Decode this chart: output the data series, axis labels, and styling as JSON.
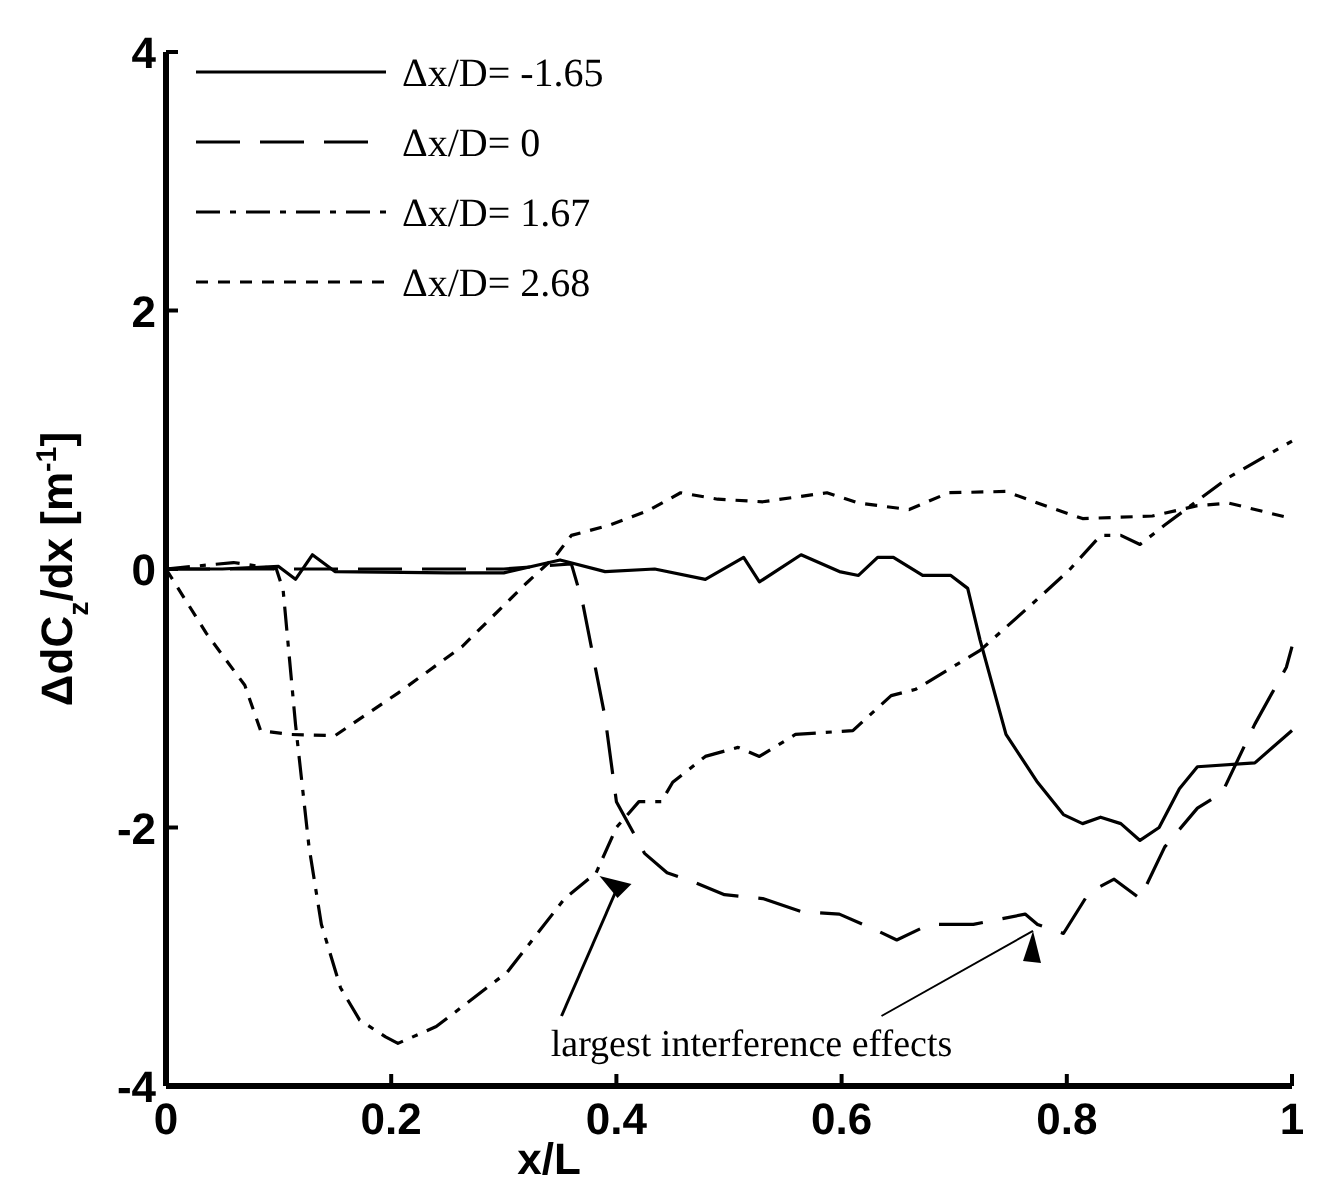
{
  "chart_data": {
    "type": "line",
    "xlabel": "x/L",
    "ylabel": "ΔdC$_{z}$/dx [m$^{-1}$]",
    "xlim": [
      0,
      1
    ],
    "ylim": [
      -4,
      4
    ],
    "xticks": [
      0,
      0.2,
      0.4,
      0.6,
      0.8,
      1
    ],
    "yticks": [
      -4,
      -2,
      0,
      2,
      4
    ],
    "grid": false,
    "legend": "top left",
    "annotations": [
      {
        "text": "largest interference effects",
        "x": 0.77,
        "y": -2.8
      }
    ],
    "series": [
      {
        "name": "Δx/D= -1.65",
        "color": "#000000",
        "line_style": "solid",
        "x": [
          0,
          0.05,
          0.1,
          0.115,
          0.13,
          0.15,
          0.25,
          0.3,
          0.35,
          0.39,
          0.434,
          0.479,
          0.513,
          0.527,
          0.564,
          0.598,
          0.615,
          0.632,
          0.646,
          0.672,
          0.697,
          0.712,
          0.723,
          0.746,
          0.774,
          0.797,
          0.814,
          0.83,
          0.848,
          0.865,
          0.882,
          0.9,
          0.916,
          0.967,
          1.0
        ],
        "values": [
          0,
          0,
          0.02,
          -0.08,
          0.11,
          -0.02,
          -0.03,
          -0.03,
          0.07,
          -0.02,
          0,
          -0.08,
          0.09,
          -0.1,
          0.11,
          -0.02,
          -0.05,
          0.09,
          0.09,
          -0.05,
          -0.05,
          -0.15,
          -0.55,
          -1.28,
          -1.65,
          -1.9,
          -1.97,
          -1.92,
          -1.97,
          -2.1,
          -2.0,
          -1.7,
          -1.53,
          -1.5,
          -1.25
        ]
      },
      {
        "name": "Δx/D= 0",
        "color": "#000000",
        "line_style": "dashed",
        "x": [
          0,
          0.1,
          0.2,
          0.3,
          0.36,
          0.37,
          0.39,
          0.4,
          0.425,
          0.445,
          0.468,
          0.496,
          0.53,
          0.564,
          0.598,
          0.632,
          0.649,
          0.678,
          0.717,
          0.763,
          0.774,
          0.797,
          0.82,
          0.842,
          0.865,
          0.887,
          0.916,
          0.938,
          0.967,
          0.995,
          1.0
        ],
        "values": [
          0,
          0,
          0,
          0,
          0.04,
          -0.26,
          -1.15,
          -1.8,
          -2.2,
          -2.35,
          -2.42,
          -2.52,
          -2.55,
          -2.65,
          -2.67,
          -2.8,
          -2.87,
          -2.75,
          -2.75,
          -2.67,
          -2.75,
          -2.82,
          -2.5,
          -2.4,
          -2.55,
          -2.15,
          -1.85,
          -1.73,
          -1.2,
          -0.76,
          -0.6
        ]
      },
      {
        "name": "Δx/D= 1.67",
        "color": "#000000",
        "line_style": "dashdot",
        "x": [
          0,
          0.06,
          0.098,
          0.104,
          0.115,
          0.127,
          0.138,
          0.155,
          0.172,
          0.195,
          0.206,
          0.24,
          0.303,
          0.354,
          0.382,
          0.4,
          0.42,
          0.44,
          0.45,
          0.479,
          0.508,
          0.527,
          0.559,
          0.61,
          0.644,
          0.666,
          0.723,
          0.768,
          0.802,
          0.83,
          0.848,
          0.865,
          0.887,
          0.944,
          1.0
        ],
        "values": [
          0,
          0.05,
          0,
          -0.16,
          -1.2,
          -2.15,
          -2.75,
          -3.24,
          -3.49,
          -3.62,
          -3.67,
          -3.54,
          -3.12,
          -2.55,
          -2.35,
          -2.0,
          -1.8,
          -1.8,
          -1.65,
          -1.45,
          -1.38,
          -1.45,
          -1.28,
          -1.25,
          -0.98,
          -0.93,
          -0.63,
          -0.28,
          -0.01,
          0.26,
          0.26,
          0.19,
          0.34,
          0.71,
          0.99
        ]
      },
      {
        "name": "Δx/D= 2.68",
        "color": "#000000",
        "line_style": "dotted",
        "x": [
          0,
          0.036,
          0.07,
          0.084,
          0.11,
          0.15,
          0.206,
          0.263,
          0.32,
          0.345,
          0.36,
          0.394,
          0.428,
          0.457,
          0.49,
          0.53,
          0.587,
          0.615,
          0.66,
          0.695,
          0.746,
          0.774,
          0.814,
          0.876,
          0.916,
          0.944,
          1.0
        ],
        "values": [
          0,
          -0.5,
          -0.9,
          -1.25,
          -1.28,
          -1.29,
          -0.96,
          -0.6,
          -0.11,
          0.09,
          0.26,
          0.34,
          0.45,
          0.59,
          0.54,
          0.52,
          0.59,
          0.51,
          0.46,
          0.59,
          0.6,
          0.51,
          0.39,
          0.41,
          0.49,
          0.51,
          0.39
        ]
      }
    ]
  }
}
